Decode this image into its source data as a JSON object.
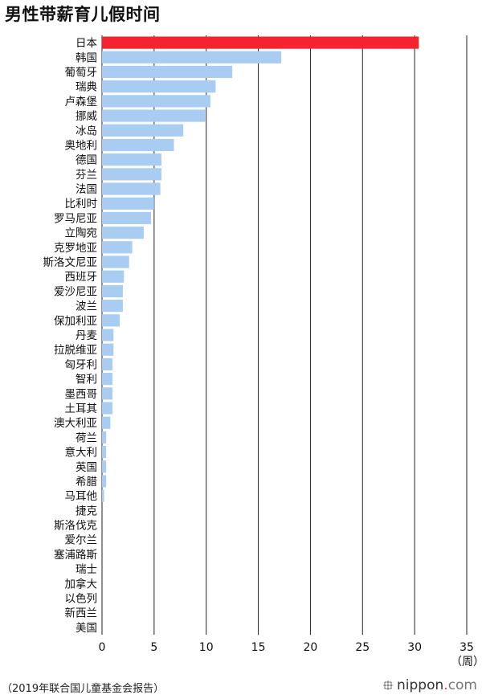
{
  "title": "男性带薪育儿假时间",
  "source": "（2019年联合国儿童基金会报告）",
  "brand": {
    "name": "nippon",
    "dot": ".",
    "tld": "com"
  },
  "colors": {
    "highlight": "#f5232f",
    "bar": "#a9cdf2",
    "gridline": "#222222",
    "text": "#111111"
  },
  "chart_data": {
    "type": "bar",
    "orientation": "horizontal",
    "title": "男性带薪育儿假时间",
    "xlabel": "（周）",
    "ylabel": "",
    "xlim": [
      0,
      35
    ],
    "xticks": [
      0,
      5,
      10,
      15,
      20,
      25,
      30,
      35
    ],
    "grid": "vertical",
    "categories": [
      "日本",
      "韩国",
      "葡萄牙",
      "瑞典",
      "卢森堡",
      "挪威",
      "冰岛",
      "奥地利",
      "德国",
      "芬兰",
      "法国",
      "比利时",
      "罗马尼亚",
      "立陶宛",
      "克罗地亚",
      "斯洛文尼亚",
      "西班牙",
      "爱沙尼亚",
      "波兰",
      "保加利亚",
      "丹麦",
      "拉脱维亚",
      "匈牙利",
      "智利",
      "墨西哥",
      "土耳其",
      "澳大利亚",
      "荷兰",
      "意大利",
      "英国",
      "希腊",
      "马耳他",
      "捷克",
      "斯洛伐克",
      "爱尔兰",
      "塞浦路斯",
      "瑞士",
      "加拿大",
      "以色列",
      "新西兰",
      "美国"
    ],
    "values": [
      30.4,
      17.2,
      12.5,
      10.9,
      10.4,
      9.9,
      7.8,
      6.9,
      5.7,
      5.7,
      5.6,
      5.0,
      4.7,
      4.0,
      2.9,
      2.6,
      2.1,
      2.0,
      2.0,
      1.7,
      1.1,
      1.1,
      1.0,
      1.0,
      1.0,
      1.0,
      0.8,
      0.4,
      0.4,
      0.4,
      0.4,
      0.2,
      0,
      0,
      0,
      0,
      0,
      0,
      0,
      0,
      0
    ],
    "highlight_category": "日本"
  }
}
